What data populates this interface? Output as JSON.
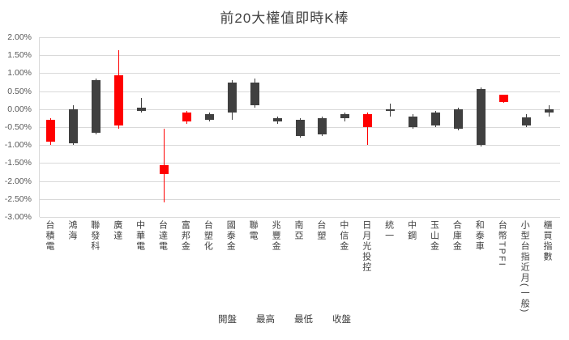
{
  "chart_data": {
    "type": "candlestick",
    "title": "前20大權值即時K棒",
    "y_axis": {
      "min": -3.0,
      "max": 2.0,
      "step": 0.5,
      "format": "percent"
    },
    "y_ticks": [
      "2.00%",
      "1.50%",
      "1.00%",
      "0.50%",
      "0.00%",
      "-0.50%",
      "-1.00%",
      "-1.50%",
      "-2.00%",
      "-2.50%",
      "-3.00%"
    ],
    "legend": [
      "開盤",
      "最高",
      "最低",
      "收盤"
    ],
    "colors": {
      "up": "#ff0000",
      "down": "#404040",
      "gridline": "#d9d9d9",
      "axis_text": "#595959",
      "title_text": "#404040"
    },
    "grid": true,
    "series": [
      {
        "name": "台積電",
        "open": -0.9,
        "high": -0.25,
        "low": -1.0,
        "close": -0.3,
        "dir": "up"
      },
      {
        "name": "鴻海",
        "open": 0.0,
        "high": 0.1,
        "low": -1.0,
        "close": -0.95,
        "dir": "down"
      },
      {
        "name": "聯發科",
        "open": 0.8,
        "high": 0.85,
        "low": -0.7,
        "close": -0.65,
        "dir": "down"
      },
      {
        "name": "廣達",
        "open": -0.45,
        "high": 1.65,
        "low": -0.55,
        "close": 0.95,
        "dir": "up"
      },
      {
        "name": "中華電",
        "open": 0.05,
        "high": 0.3,
        "low": -0.1,
        "close": -0.05,
        "dir": "down"
      },
      {
        "name": "台達電",
        "open": -1.8,
        "high": -0.55,
        "low": -2.6,
        "close": -1.55,
        "dir": "up"
      },
      {
        "name": "富邦金",
        "open": -0.35,
        "high": -0.05,
        "low": -0.4,
        "close": -0.1,
        "dir": "up"
      },
      {
        "name": "台塑化",
        "open": -0.15,
        "high": -0.1,
        "low": -0.35,
        "close": -0.3,
        "dir": "down"
      },
      {
        "name": "國泰金",
        "open": 0.75,
        "high": 0.8,
        "low": -0.3,
        "close": -0.1,
        "dir": "down"
      },
      {
        "name": "聯電",
        "open": 0.75,
        "high": 0.85,
        "low": 0.05,
        "close": 0.1,
        "dir": "down"
      },
      {
        "name": "兆豐金",
        "open": -0.25,
        "high": -0.2,
        "low": -0.4,
        "close": -0.35,
        "dir": "down"
      },
      {
        "name": "南亞",
        "open": -0.3,
        "high": -0.25,
        "low": -0.8,
        "close": -0.75,
        "dir": "down"
      },
      {
        "name": "台塑",
        "open": -0.25,
        "high": -0.2,
        "low": -0.75,
        "close": -0.7,
        "dir": "down"
      },
      {
        "name": "中信金",
        "open": -0.15,
        "high": -0.1,
        "low": -0.35,
        "close": -0.25,
        "dir": "down"
      },
      {
        "name": "日月光投控",
        "open": -0.5,
        "high": -0.1,
        "low": -1.0,
        "close": -0.15,
        "dir": "up"
      },
      {
        "name": "統一",
        "open": 0.0,
        "high": 0.15,
        "low": -0.2,
        "close": -0.05,
        "dir": "down"
      },
      {
        "name": "中鋼",
        "open": -0.2,
        "high": -0.15,
        "low": -0.55,
        "close": -0.5,
        "dir": "down"
      },
      {
        "name": "玉山金",
        "open": -0.1,
        "high": -0.05,
        "low": -0.5,
        "close": -0.45,
        "dir": "down"
      },
      {
        "name": "合庫金",
        "open": 0.0,
        "high": 0.05,
        "low": -0.6,
        "close": -0.55,
        "dir": "down"
      },
      {
        "name": "和泰車",
        "open": 0.55,
        "high": 0.6,
        "low": -1.05,
        "close": -1.0,
        "dir": "down"
      },
      {
        "name": "台幣TPFI",
        "open": 0.2,
        "high": 0.4,
        "low": 0.18,
        "close": 0.4,
        "dir": "up"
      },
      {
        "name": "小型台指近月(一般)",
        "open": -0.22,
        "high": -0.15,
        "low": -0.5,
        "close": -0.45,
        "dir": "down"
      },
      {
        "name": "櫃買指數",
        "open": 0.0,
        "high": 0.1,
        "low": -0.2,
        "close": -0.1,
        "dir": "down"
      }
    ]
  }
}
